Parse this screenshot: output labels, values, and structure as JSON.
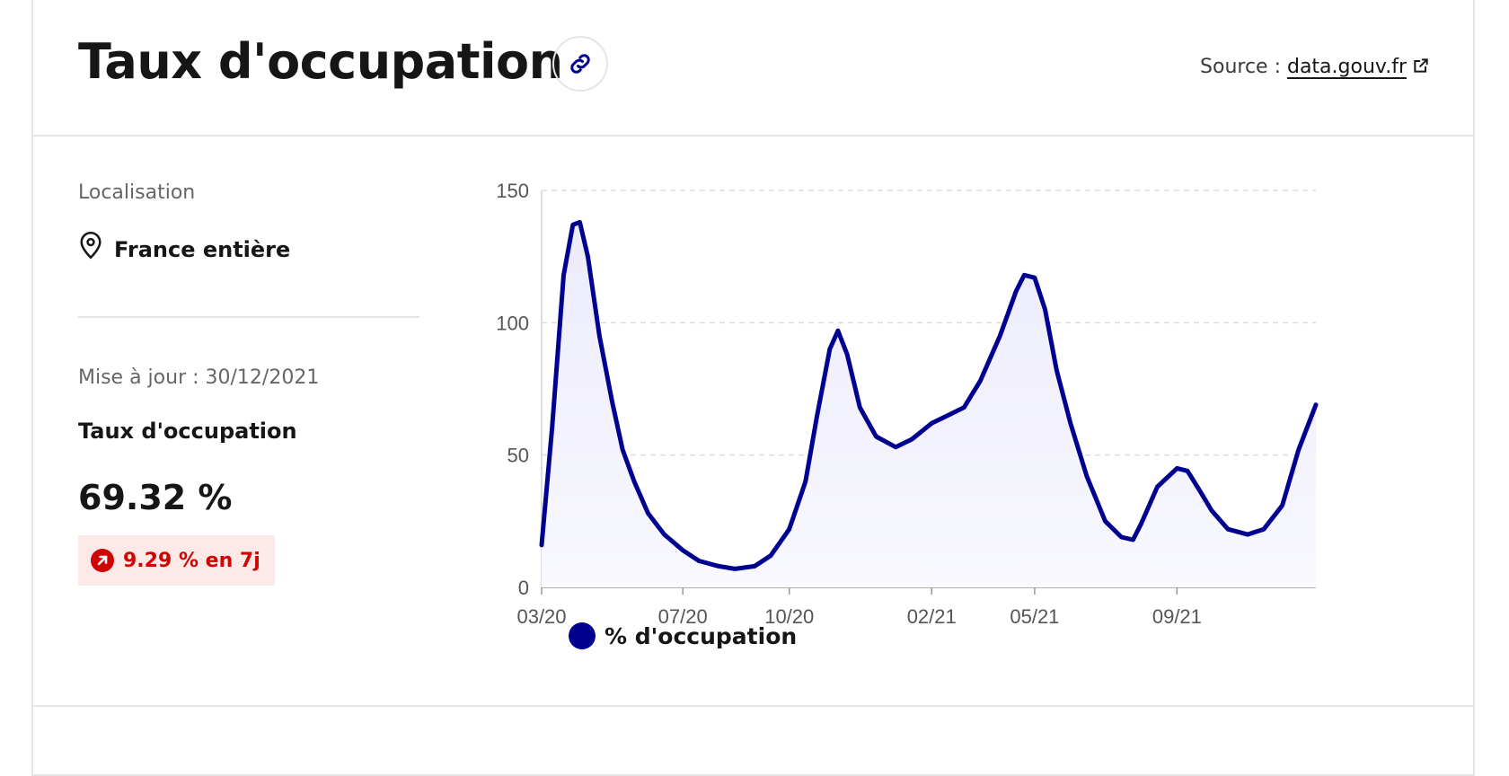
{
  "header": {
    "title": "Taux d'occupation",
    "source_prefix": "Source :",
    "source_link": "data.gouv.fr"
  },
  "sidebar": {
    "location_label": "Localisation",
    "location_value": "France entière",
    "update_text": "Mise à jour : 30/12/2021",
    "metric_label": "Taux d'occupation",
    "metric_value": "69.32 %",
    "trend_text": "9.29 % en 7j"
  },
  "legend": {
    "series_label": "% d'occupation"
  },
  "colors": {
    "series": "#000091",
    "trend": "#ce0500",
    "trend_bg": "#fee9e9"
  },
  "icons": {
    "link": "link-icon",
    "external": "external-link-icon",
    "location": "map-pin-icon",
    "trend": "arrow-up-right-icon"
  },
  "chart_data": {
    "type": "area",
    "title": "",
    "xlabel": "",
    "ylabel": "",
    "ylim": [
      0,
      150
    ],
    "yticks": [
      0,
      50,
      100,
      150
    ],
    "grid": true,
    "x_tick_labels": [
      "03/20",
      "07/20",
      "10/20",
      "02/21",
      "05/21",
      "09/21"
    ],
    "x_tick_dates": [
      "2020-03-01",
      "2020-07-01",
      "2020-10-01",
      "2021-02-01",
      "2021-05-01",
      "2021-09-01"
    ],
    "legend_position": "bottom-left",
    "series": [
      {
        "name": "% d'occupation",
        "points": [
          [
            "2020-03-01",
            16
          ],
          [
            "2020-03-10",
            60
          ],
          [
            "2020-03-20",
            118
          ],
          [
            "2020-03-28",
            137
          ],
          [
            "2020-04-03",
            138
          ],
          [
            "2020-04-10",
            125
          ],
          [
            "2020-04-20",
            95
          ],
          [
            "2020-05-01",
            70
          ],
          [
            "2020-05-10",
            52
          ],
          [
            "2020-05-20",
            40
          ],
          [
            "2020-06-01",
            28
          ],
          [
            "2020-06-15",
            20
          ],
          [
            "2020-07-01",
            14
          ],
          [
            "2020-07-15",
            10
          ],
          [
            "2020-08-01",
            8
          ],
          [
            "2020-08-15",
            7
          ],
          [
            "2020-09-01",
            8
          ],
          [
            "2020-09-15",
            12
          ],
          [
            "2020-10-01",
            22
          ],
          [
            "2020-10-15",
            40
          ],
          [
            "2020-10-25",
            65
          ],
          [
            "2020-11-05",
            90
          ],
          [
            "2020-11-12",
            97
          ],
          [
            "2020-11-20",
            88
          ],
          [
            "2020-12-01",
            68
          ],
          [
            "2020-12-15",
            57
          ],
          [
            "2021-01-01",
            53
          ],
          [
            "2021-01-15",
            56
          ],
          [
            "2021-02-01",
            62
          ],
          [
            "2021-02-15",
            65
          ],
          [
            "2021-03-01",
            68
          ],
          [
            "2021-03-15",
            78
          ],
          [
            "2021-04-01",
            95
          ],
          [
            "2021-04-15",
            112
          ],
          [
            "2021-04-22",
            118
          ],
          [
            "2021-05-01",
            117
          ],
          [
            "2021-05-10",
            105
          ],
          [
            "2021-05-20",
            82
          ],
          [
            "2021-06-01",
            62
          ],
          [
            "2021-06-15",
            42
          ],
          [
            "2021-07-01",
            25
          ],
          [
            "2021-07-15",
            19
          ],
          [
            "2021-07-25",
            18
          ],
          [
            "2021-08-01",
            24
          ],
          [
            "2021-08-15",
            38
          ],
          [
            "2021-09-01",
            45
          ],
          [
            "2021-09-10",
            44
          ],
          [
            "2021-09-20",
            37
          ],
          [
            "2021-10-01",
            29
          ],
          [
            "2021-10-15",
            22
          ],
          [
            "2021-11-01",
            20
          ],
          [
            "2021-11-15",
            22
          ],
          [
            "2021-12-01",
            31
          ],
          [
            "2021-12-15",
            52
          ],
          [
            "2021-12-30",
            69
          ]
        ]
      }
    ]
  }
}
